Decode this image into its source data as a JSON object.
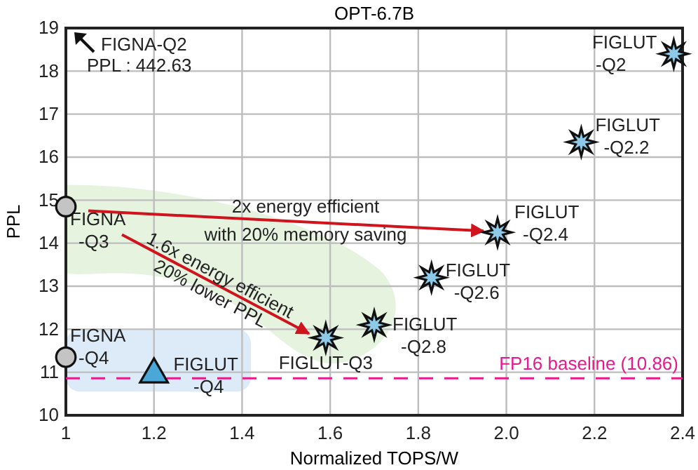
{
  "chart_data": {
    "type": "scatter",
    "title": "OPT-6.7B",
    "xlabel": "Normalized TOPS/W",
    "ylabel": "PPL",
    "xlim": [
      1,
      2.4
    ],
    "xticks": [
      1,
      1.2,
      1.4,
      1.6,
      1.8,
      {
        "value": 2,
        "label": "2.0"
      },
      2.2,
      2.4
    ],
    "ylim": [
      10,
      19
    ],
    "yticks": [
      10,
      11,
      12,
      13,
      14,
      15,
      16,
      17,
      18,
      19
    ],
    "grid": true,
    "series": [
      {
        "marker": "circle",
        "color": "#c4c4c4",
        "x": [
          1,
          1
        ],
        "values": [
          14.85,
          11.35
        ]
      },
      {
        "marker": "triangle",
        "color": "#4aa8d8",
        "x": [
          1.2
        ],
        "values": [
          10.95
        ]
      },
      {
        "marker": "star",
        "color": "#8ec9e8",
        "x": [
          1.59,
          1.7,
          1.83,
          1.98,
          2.17,
          2.38
        ],
        "values": [
          11.8,
          12.1,
          13.2,
          14.25,
          16.35,
          18.4
        ]
      }
    ],
    "ref_lines": [
      {
        "axis": "y",
        "value": 10.86,
        "label": "FP16 baseline (10.86)",
        "color": "#e8198b",
        "line_style": "dashed"
      }
    ],
    "annotations": [
      {
        "text": "FIGNA\n-Q3",
        "x": 1,
        "y": 14.85
      },
      {
        "text": "FIGNA\n-Q4",
        "x": 1,
        "y": 11.35
      },
      {
        "text": "FIGLUT\n-Q4",
        "x": 1.2,
        "y": 10.95
      },
      {
        "text": "FIGLUT-Q3",
        "x": 1.59,
        "y": 11.8
      },
      {
        "text": "FIGLUT\n-Q2.8",
        "x": 1.7,
        "y": 12.1
      },
      {
        "text": "FIGLUT\n-Q2.6",
        "x": 1.83,
        "y": 13.2
      },
      {
        "text": "FIGLUT\n-Q2.4",
        "x": 1.98,
        "y": 14.25
      },
      {
        "text": "FIGLUT\n-Q2.2",
        "x": 2.17,
        "y": 16.35
      },
      {
        "text": "FIGLUT\n-Q2",
        "x": 2.38,
        "y": 18.4
      },
      "FIGNA-Q2\nPPL : 442.63",
      "2x energy efficient\nwith 20% memory saving",
      "1.6x energy efficient\n20% lower PPL"
    ]
  }
}
